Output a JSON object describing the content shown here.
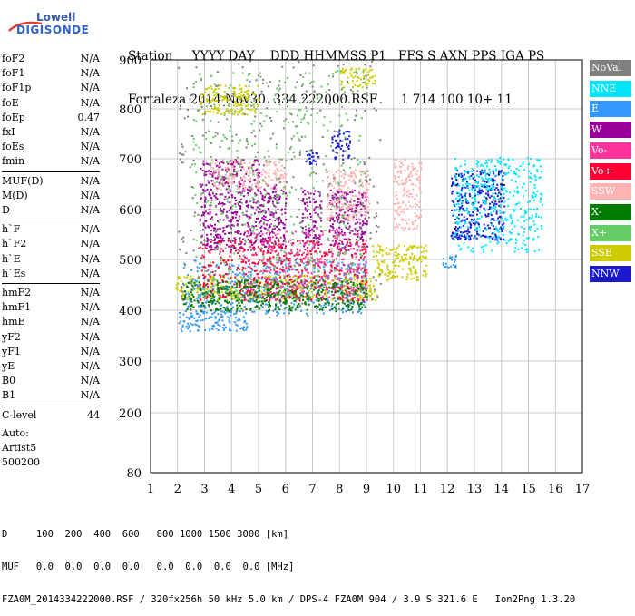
{
  "logo": {
    "line1": "Lowell",
    "line2": "DIGISONDE"
  },
  "header": {
    "labels": "Station     YYYY DAY    DDD HHMMSS P1   FFS S AXN PPS IGA PS",
    "values": "Fortaleza 2014 Nov30  334 222000 RSF      1 714 100 10+ 11"
  },
  "params": {
    "group1": [
      {
        "name": "foF2",
        "value": "N/A"
      },
      {
        "name": "foF1",
        "value": "N/A"
      },
      {
        "name": "foF1p",
        "value": "N/A"
      },
      {
        "name": "foE",
        "value": "N/A"
      },
      {
        "name": "foEp",
        "value": "0.47"
      },
      {
        "name": "fxI",
        "value": "N/A"
      },
      {
        "name": "foEs",
        "value": "N/A"
      },
      {
        "name": "fmin",
        "value": "N/A"
      }
    ],
    "group2": [
      {
        "name": "MUF(D)",
        "value": "N/A"
      },
      {
        "name": "M(D)",
        "value": "N/A"
      },
      {
        "name": "D",
        "value": "N/A"
      }
    ],
    "group3": [
      {
        "name": "h`F",
        "value": "N/A"
      },
      {
        "name": "h`F2",
        "value": "N/A"
      },
      {
        "name": "h`E",
        "value": "N/A"
      },
      {
        "name": "h`Es",
        "value": "N/A"
      }
    ],
    "group4": [
      {
        "name": "hmF2",
        "value": "N/A"
      },
      {
        "name": "hmF1",
        "value": "N/A"
      },
      {
        "name": "hmE",
        "value": "N/A"
      },
      {
        "name": "yF2",
        "value": "N/A"
      },
      {
        "name": "yF1",
        "value": "N/A"
      },
      {
        "name": "yE",
        "value": "N/A"
      },
      {
        "name": "B0",
        "value": "N/A"
      },
      {
        "name": "B1",
        "value": "N/A"
      }
    ],
    "clevel": {
      "name": "C-level",
      "value": "44"
    },
    "auto": [
      "Auto:",
      "Artist5",
      "500200"
    ]
  },
  "legend": [
    {
      "label": "NoVal",
      "color": "#808080"
    },
    {
      "label": "NNE",
      "color": "#00e5ff"
    },
    {
      "label": "E",
      "color": "#3399ff"
    },
    {
      "label": "W",
      "color": "#990099"
    },
    {
      "label": "Vo-",
      "color": "#ff3399"
    },
    {
      "label": "Vo+",
      "color": "#ff0033"
    },
    {
      "label": "SSW",
      "color": "#ffb3b3"
    },
    {
      "label": "X-",
      "color": "#007a00"
    },
    {
      "label": "X+",
      "color": "#66cc66"
    },
    {
      "label": "SSE",
      "color": "#cccc00"
    },
    {
      "label": "NNW",
      "color": "#1a1acc"
    }
  ],
  "footer": {
    "line1": "D     100  200  400  600   800 1000 1500 3000 [km]",
    "line2": "MUF   0.0  0.0  0.0  0.0   0.0  0.0  0.0  0.0 [MHz]",
    "line3": "FZA0M_2014334222000.RSF / 320fx256h 50 kHz 5.0 km / DPS-4 FZA0M 904 / 3.9 S 321.6 E   Ion2Png 1.3.20"
  },
  "chart_data": {
    "type": "scatter",
    "xlabel": "",
    "ylabel": "",
    "xlim": [
      1,
      17
    ],
    "ylim": [
      80,
      900
    ],
    "x_ticks": [
      "1",
      "2",
      "3",
      "4",
      "5",
      "6",
      "7",
      "8",
      "9",
      "10",
      "11",
      "12",
      "13",
      "14",
      "15",
      "16",
      "17"
    ],
    "y_ticks": [
      "80",
      "200",
      "300",
      "400",
      "500",
      "600",
      "700",
      "800",
      "900"
    ],
    "grid": true,
    "clusters": [
      {
        "series": "SSE",
        "x": [
          2.8,
          5.0
        ],
        "y": [
          790,
          850
        ]
      },
      {
        "series": "SSE",
        "x": [
          8.0,
          9.3
        ],
        "y": [
          845,
          885
        ]
      },
      {
        "series": "SSE",
        "x": [
          1.9,
          9.4
        ],
        "y": [
          420,
          470
        ]
      },
      {
        "series": "SSE",
        "x": [
          9.2,
          11.2
        ],
        "y": [
          460,
          530
        ]
      },
      {
        "series": "E",
        "x": [
          2.0,
          4.6
        ],
        "y": [
          360,
          400
        ]
      },
      {
        "series": "E",
        "x": [
          2.2,
          9.0
        ],
        "y": [
          395,
          500
        ]
      },
      {
        "series": "E",
        "x": [
          11.8,
          12.3
        ],
        "y": [
          485,
          510
        ]
      },
      {
        "series": "W",
        "x": [
          2.8,
          5.0
        ],
        "y": [
          520,
          700
        ]
      },
      {
        "series": "W",
        "x": [
          5.0,
          6.0
        ],
        "y": [
          520,
          650
        ]
      },
      {
        "series": "W",
        "x": [
          6.6,
          7.3
        ],
        "y": [
          525,
          640
        ]
      },
      {
        "series": "W",
        "x": [
          7.6,
          9.0
        ],
        "y": [
          520,
          640
        ]
      },
      {
        "series": "SSW",
        "x": [
          3.2,
          6.0
        ],
        "y": [
          640,
          700
        ]
      },
      {
        "series": "SSW",
        "x": [
          7.5,
          9.1
        ],
        "y": [
          580,
          680
        ]
      },
      {
        "series": "SSW",
        "x": [
          10.0,
          11.0
        ],
        "y": [
          560,
          700
        ]
      },
      {
        "series": "NNW",
        "x": [
          6.7,
          7.2
        ],
        "y": [
          690,
          720
        ]
      },
      {
        "series": "NNW",
        "x": [
          7.7,
          8.4
        ],
        "y": [
          700,
          760
        ]
      },
      {
        "series": "NNW",
        "x": [
          12.1,
          14.1
        ],
        "y": [
          540,
          680
        ]
      },
      {
        "series": "NNE",
        "x": [
          12.2,
          15.5
        ],
        "y": [
          515,
          705
        ]
      },
      {
        "series": "Vo-",
        "x": [
          4.4,
          9.0
        ],
        "y": [
          420,
          560
        ]
      },
      {
        "series": "Vo+",
        "x": [
          2.8,
          9.0
        ],
        "y": [
          420,
          540
        ]
      },
      {
        "series": "NoVal",
        "x": [
          2.0,
          9.5
        ],
        "y": [
          380,
          900
        ]
      },
      {
        "series": "X-",
        "x": [
          2.2,
          9.0
        ],
        "y": [
          400,
          460
        ]
      },
      {
        "series": "X+",
        "x": [
          2.5,
          9.0
        ],
        "y": [
          420,
          880
        ]
      }
    ]
  }
}
